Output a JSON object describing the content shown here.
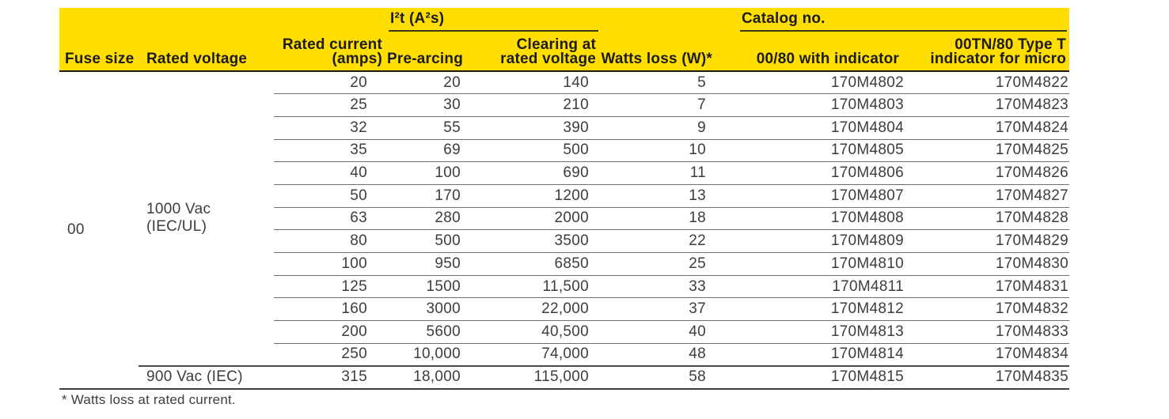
{
  "colors": {
    "header_background": "#FFDE00",
    "header_text": "#1C1C1C",
    "body_text": "#3D3D3D",
    "row_line": "#6E6E6E",
    "heavy_line": "#4A4A4A"
  },
  "table": {
    "group_headers": {
      "i2t": "I²t (A²s)",
      "catalog": "Catalog no."
    },
    "columns": [
      "Fuse size",
      "Rated voltage",
      "Rated current\n(amps)",
      "Pre-arcing",
      "Clearing at\nrated voltage",
      "Watts loss (W)*",
      "00/80 with indicator",
      "00TN/80 Type T\nindicator for micro"
    ],
    "fuse_size": "00",
    "voltage_groups": [
      {
        "label": "1000 Vac (IEC/UL)",
        "row_count": 13
      },
      {
        "label": "900 Vac (IEC)",
        "row_count": 1
      }
    ],
    "rows": [
      [
        "20",
        "20",
        "140",
        "5",
        "170M4802",
        "170M4822"
      ],
      [
        "25",
        "30",
        "210",
        "7",
        "170M4803",
        "170M4823"
      ],
      [
        "32",
        "55",
        "390",
        "9",
        "170M4804",
        "170M4824"
      ],
      [
        "35",
        "69",
        "500",
        "10",
        "170M4805",
        "170M4825"
      ],
      [
        "40",
        "100",
        "690",
        "11",
        "170M4806",
        "170M4826"
      ],
      [
        "50",
        "170",
        "1200",
        "13",
        "170M4807",
        "170M4827"
      ],
      [
        "63",
        "280",
        "2000",
        "18",
        "170M4808",
        "170M4828"
      ],
      [
        "80",
        "500",
        "3500",
        "22",
        "170M4809",
        "170M4829"
      ],
      [
        "100",
        "950",
        "6850",
        "25",
        "170M4810",
        "170M4830"
      ],
      [
        "125",
        "1500",
        "11,500",
        "33",
        "170M4811",
        "170M4831"
      ],
      [
        "160",
        "3000",
        "22,000",
        "37",
        "170M4812",
        "170M4832"
      ],
      [
        "200",
        "5600",
        "40,500",
        "40",
        "170M4813",
        "170M4833"
      ],
      [
        "250",
        "10,000",
        "74,000",
        "48",
        "170M4814",
        "170M4834"
      ],
      [
        "315",
        "18,000",
        "115,000",
        "58",
        "170M4815",
        "170M4835"
      ]
    ],
    "footnote": "* Watts loss at rated current."
  }
}
